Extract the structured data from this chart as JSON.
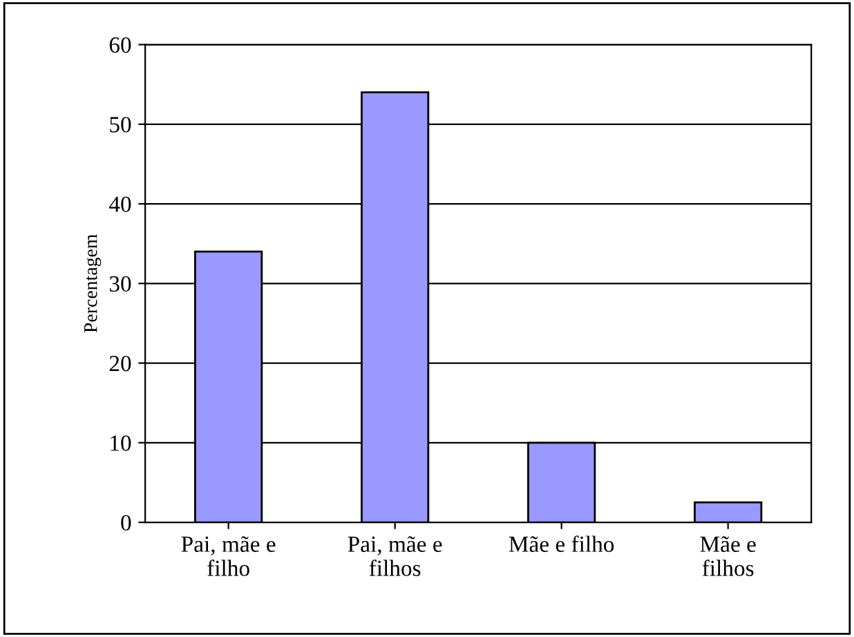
{
  "chart_data": {
    "type": "bar",
    "categories": [
      "Pai, mãe e\nfilho",
      "Pai, mãe e\nfilhos",
      "Mãe e filho",
      "Mãe e\nfilhos"
    ],
    "values": [
      34,
      54,
      10,
      2.5
    ],
    "color": "#9999ff",
    "ylabel": "Percentagem",
    "ylim": [
      0,
      60
    ],
    "yticks": [
      0,
      10,
      20,
      30,
      40,
      50,
      60
    ],
    "grid": "y"
  }
}
